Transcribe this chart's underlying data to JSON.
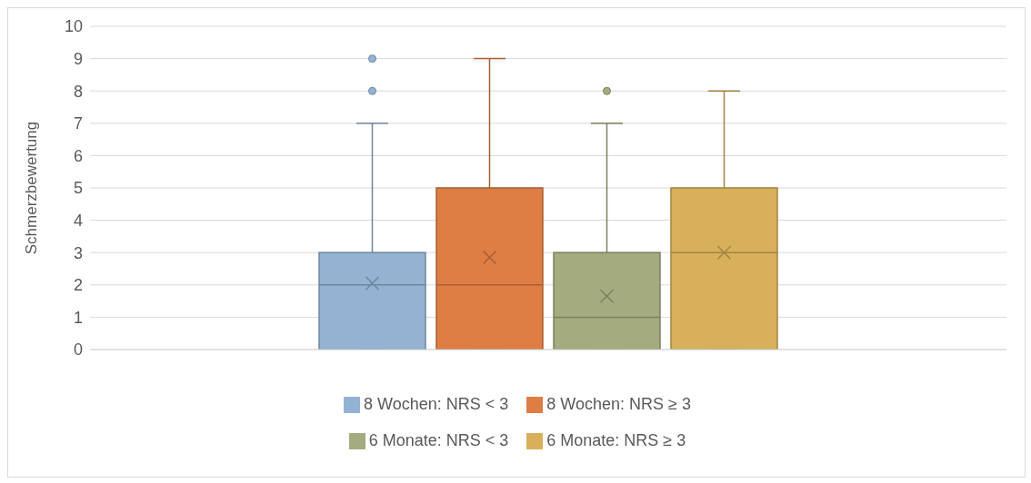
{
  "chart_data": {
    "type": "box",
    "ylabel": "Schmerzbewertung",
    "categories": [
      null
    ],
    "series": [
      {
        "name": "8 Wochen: NRS < 3",
        "color": "#94b3d3",
        "boxes": [
          {
            "low": 0,
            "q1": 0,
            "median": 2,
            "q3": 3,
            "high": 7,
            "mean": 2.05,
            "outliers": [
              8,
              9
            ]
          }
        ]
      },
      {
        "name": "8 Wochen: NRS ≥ 3",
        "color": "#de7e45",
        "boxes": [
          {
            "low": 0,
            "q1": 0,
            "median": 2,
            "q3": 5,
            "high": 9,
            "mean": 2.85
          }
        ]
      },
      {
        "name": "6 Monate: NRS < 3",
        "color": "#a4ab7f",
        "boxes": [
          {
            "low": 0,
            "q1": 0,
            "median": 1,
            "q3": 3,
            "high": 7,
            "mean": 1.65,
            "outliers": [
              8
            ]
          }
        ]
      },
      {
        "name": "6 Monate: NRS ≥ 3",
        "color": "#d8b05b",
        "boxes": [
          {
            "low": 0,
            "q1": 0,
            "median": 3,
            "q3": 5,
            "high": 8,
            "mean": 3.0
          }
        ]
      }
    ],
    "ylim": [
      0,
      10
    ],
    "yticks": [
      0,
      1,
      2,
      3,
      4,
      5,
      6,
      7,
      8,
      9,
      10
    ],
    "grid": "y",
    "legend": "bottom"
  }
}
